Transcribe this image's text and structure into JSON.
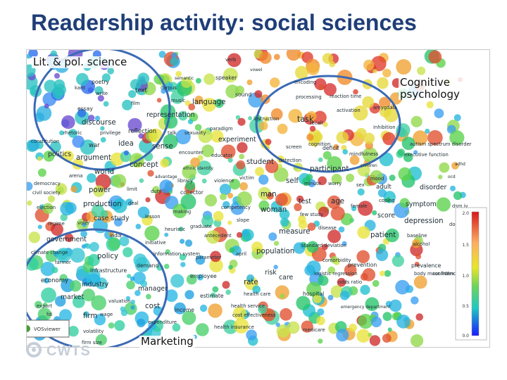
{
  "slide": {
    "title": "Readership activity: social sciences"
  },
  "regions": {
    "lit_pol": "Lit. & pol. science",
    "cognitive": "Cognitive psychology",
    "marketing": "Marketing"
  },
  "colorbar": {
    "ticks": [
      "2.0",
      "1.5",
      "1.0",
      "0.5",
      "0.0"
    ]
  },
  "viewer": {
    "vos_label": "VOSviewer"
  },
  "logo": {
    "text": "CWTS"
  },
  "terms": [
    {
      "t": "verb",
      "c": "#2e9a5a"
    },
    {
      "t": "vowel",
      "c": "#2e9a5a"
    },
    {
      "t": "semantic",
      "c": "#2e9a5a"
    },
    {
      "t": "speaker",
      "c": "#2e9a5a"
    },
    {
      "t": "poetry",
      "c": "#2e9a5a"
    },
    {
      "t": "corpus",
      "c": "#2e9a5a"
    },
    {
      "t": "kant",
      "c": "#2e9a5a"
    },
    {
      "t": "text",
      "c": "#2e9a5a"
    },
    {
      "t": "write",
      "c": "#2e9a5a"
    },
    {
      "t": "sound",
      "c": "#2e9a5a"
    },
    {
      "t": "music",
      "c": "#2e9a5a"
    },
    {
      "t": "language",
      "c": "#2e9a5a"
    },
    {
      "t": "film",
      "c": "#2e9a5a"
    },
    {
      "t": "essay",
      "c": "#2e9a5a"
    },
    {
      "t": "representation",
      "c": "#2e9a5a"
    },
    {
      "t": "discourse",
      "c": "#2e9a5a"
    },
    {
      "t": "paradigm",
      "c": "#2e9a5a"
    },
    {
      "t": "instruction",
      "c": "#2e9a5a"
    },
    {
      "t": "rhetoric",
      "c": "#2e9a5a"
    },
    {
      "t": "privilege",
      "c": "#2e9a5a"
    },
    {
      "t": "reflection",
      "c": "#2e9a5a"
    },
    {
      "t": "talk",
      "c": "#2e9a5a"
    },
    {
      "t": "sexuality",
      "c": "#2e9a5a"
    },
    {
      "t": "experiment",
      "c": "#2e9a5a"
    },
    {
      "t": "constitution",
      "c": "#2e9a5a"
    },
    {
      "t": "war",
      "c": "#2e9a5a"
    },
    {
      "t": "idea",
      "c": "#2e9a5a"
    },
    {
      "t": "sense",
      "c": "#2e9a5a"
    },
    {
      "t": "encounter",
      "c": "#2e9a5a"
    },
    {
      "t": "educator",
      "c": "#2e9a5a"
    },
    {
      "t": "politics",
      "c": "#2e9a5a"
    },
    {
      "t": "argument",
      "c": "#2e9a5a"
    },
    {
      "t": "concept",
      "c": "#2e9a5a"
    },
    {
      "t": "student",
      "c": "#2e9a5a"
    },
    {
      "t": "ethnic identity",
      "c": "#2e9a5a"
    },
    {
      "t": "arena",
      "c": "#2e9a5a"
    },
    {
      "t": "world",
      "c": "#2e9a5a"
    },
    {
      "t": "advantage",
      "c": "#2e9a5a"
    },
    {
      "t": "library",
      "c": "#2e9a5a"
    },
    {
      "t": "violence",
      "c": "#2e9a5a"
    },
    {
      "t": "victim",
      "c": "#2e9a5a"
    },
    {
      "t": "democracy",
      "c": "#2e9a5a"
    },
    {
      "t": "civil society",
      "c": "#2e9a5a"
    },
    {
      "t": "power",
      "c": "#2e9a5a"
    },
    {
      "t": "limit",
      "c": "#2e9a5a"
    },
    {
      "t": "duty",
      "c": "#2e9a5a"
    },
    {
      "t": "collector",
      "c": "#2e9a5a"
    },
    {
      "t": "election",
      "c": "#2e9a5a"
    },
    {
      "t": "production",
      "c": "#2e9a5a"
    },
    {
      "t": "deal",
      "c": "#2e9a5a"
    },
    {
      "t": "making",
      "c": "#2e9a5a"
    },
    {
      "t": "competency",
      "c": "#2e9a5a"
    },
    {
      "t": "regime",
      "c": "#2e9a5a"
    },
    {
      "t": "voter",
      "c": "#2e9a5a"
    },
    {
      "t": "case study",
      "c": "#2e9a5a"
    },
    {
      "t": "lesson",
      "c": "#2e9a5a"
    },
    {
      "t": "graduate",
      "c": "#2e9a5a"
    },
    {
      "t": "slope",
      "c": "#2e9a5a"
    },
    {
      "t": "india",
      "c": "#2e9a5a"
    },
    {
      "t": "heuristic",
      "c": "#2e9a5a"
    },
    {
      "t": "antecedent",
      "c": "#2e9a5a"
    },
    {
      "t": "government",
      "c": "#2e9a5a"
    },
    {
      "t": "initiative",
      "c": "#2e9a5a"
    },
    {
      "t": "climate change",
      "c": "#2e9a5a"
    },
    {
      "t": "policy",
      "c": "#2e9a5a"
    },
    {
      "t": "information system",
      "c": "#2e9a5a"
    },
    {
      "t": "farmer",
      "c": "#2e9a5a"
    },
    {
      "t": "demand",
      "c": "#2e9a5a"
    },
    {
      "t": "parameter",
      "c": "#2e9a5a"
    },
    {
      "t": "april",
      "c": "#2e9a5a"
    },
    {
      "t": "population",
      "c": "#2e9a5a"
    },
    {
      "t": "infrastructure",
      "c": "#2e9a5a"
    },
    {
      "t": "employee",
      "c": "#2e9a5a"
    },
    {
      "t": "economy",
      "c": "#2e9a5a"
    },
    {
      "t": "industry",
      "c": "#2e9a5a"
    },
    {
      "t": "rate",
      "c": "#2e9a5a"
    },
    {
      "t": "risk",
      "c": "#2e9a5a"
    },
    {
      "t": "care",
      "c": "#2e9a5a"
    },
    {
      "t": "manager",
      "c": "#2e9a5a"
    },
    {
      "t": "market",
      "c": "#2e9a5a"
    },
    {
      "t": "valuation",
      "c": "#2e9a5a"
    },
    {
      "t": "estimate",
      "c": "#2e9a5a"
    },
    {
      "t": "health care",
      "c": "#2e9a5a"
    },
    {
      "t": "hospital",
      "c": "#2e9a5a"
    },
    {
      "t": "export",
      "c": "#2e9a5a"
    },
    {
      "t": "health service",
      "c": "#2e9a5a"
    },
    {
      "t": "fdi",
      "c": "#2e9a5a"
    },
    {
      "t": "cost",
      "c": "#2e9a5a"
    },
    {
      "t": "income",
      "c": "#2e9a5a"
    },
    {
      "t": "firm",
      "c": "#2e9a5a"
    },
    {
      "t": "wage",
      "c": "#2e9a5a"
    },
    {
      "t": "cost effectiveness",
      "c": "#2e9a5a"
    },
    {
      "t": "taxes",
      "c": "#2e9a5a"
    },
    {
      "t": "expenditure",
      "c": "#2e9a5a"
    },
    {
      "t": "volatility",
      "c": "#2e9a5a"
    },
    {
      "t": "health insurance",
      "c": "#2e9a5a"
    },
    {
      "t": "medicare",
      "c": "#2e9a5a"
    },
    {
      "t": "firm size",
      "c": "#2e9a5a"
    },
    {
      "t": "encoding",
      "c": "#2e9a5a"
    },
    {
      "t": "processing",
      "c": "#2e9a5a"
    },
    {
      "t": "reaction time",
      "c": "#2e9a5a"
    },
    {
      "t": "activation",
      "c": "#2e9a5a"
    },
    {
      "t": "amygdala",
      "c": "#2e9a5a"
    },
    {
      "t": "task",
      "c": "#2e9a5a"
    },
    {
      "t": "recall",
      "c": "#2e9a5a"
    },
    {
      "t": "inhibition",
      "c": "#2e9a5a"
    },
    {
      "t": "cognition",
      "c": "#2e9a5a"
    },
    {
      "t": "screen",
      "c": "#2e9a5a"
    },
    {
      "t": "deficit",
      "c": "#2e9a5a"
    },
    {
      "t": "autism spectrum disorder",
      "c": "#2e9a5a"
    },
    {
      "t": "mindfulness",
      "c": "#2e9a5a"
    },
    {
      "t": "executive function",
      "c": "#2e9a5a"
    },
    {
      "t": "detection",
      "c": "#2e9a5a"
    },
    {
      "t": "adhd",
      "c": "#2e9a5a"
    },
    {
      "t": "children",
      "c": "#2e9a5a"
    },
    {
      "t": "participant",
      "c": "#2e9a5a"
    },
    {
      "t": "ocd",
      "c": "#2e9a5a"
    },
    {
      "t": "mood",
      "c": "#2e9a5a"
    },
    {
      "t": "self",
      "c": "#2e9a5a"
    },
    {
      "t": "minute",
      "c": "#2e9a5a"
    },
    {
      "t": "worry",
      "c": "#2e9a5a"
    },
    {
      "t": "sex",
      "c": "#2e9a5a"
    },
    {
      "t": "adult",
      "c": "#2e9a5a"
    },
    {
      "t": "disorder",
      "c": "#2e9a5a"
    },
    {
      "t": "man",
      "c": "#2e9a5a"
    },
    {
      "t": "test",
      "c": "#2e9a5a"
    },
    {
      "t": "age",
      "c": "#2e9a5a"
    },
    {
      "t": "coping",
      "c": "#2e9a5a"
    },
    {
      "t": "woman",
      "c": "#2e9a5a"
    },
    {
      "t": "female",
      "c": "#2e9a5a"
    },
    {
      "t": "symptom",
      "c": "#2e9a5a"
    },
    {
      "t": "dsm iv",
      "c": "#2e9a5a"
    },
    {
      "t": "few study",
      "c": "#2e9a5a"
    },
    {
      "t": "score",
      "c": "#2e9a5a"
    },
    {
      "t": "depression",
      "c": "#2e9a5a"
    },
    {
      "t": "double blind",
      "c": "#2e9a5a"
    },
    {
      "t": "measure",
      "c": "#2e9a5a"
    },
    {
      "t": "disease",
      "c": "#2e9a5a"
    },
    {
      "t": "patient",
      "c": "#2e9a5a"
    },
    {
      "t": "baseline",
      "c": "#2e9a5a"
    },
    {
      "t": "standard deviation",
      "c": "#2e9a5a"
    },
    {
      "t": "alcohol",
      "c": "#2e9a5a"
    },
    {
      "t": "comorbidity",
      "c": "#2e9a5a"
    },
    {
      "t": "prevention",
      "c": "#2e9a5a"
    },
    {
      "t": "prevalence",
      "c": "#2e9a5a"
    },
    {
      "t": "body mass index",
      "c": "#2e9a5a"
    },
    {
      "t": "logistic regression",
      "c": "#2e9a5a"
    },
    {
      "t": "odds ratio",
      "c": "#2e9a5a"
    },
    {
      "t": "confidence interval",
      "c": "#2e9a5a"
    },
    {
      "t": "emergency department",
      "c": "#2e9a5a"
    }
  ]
}
